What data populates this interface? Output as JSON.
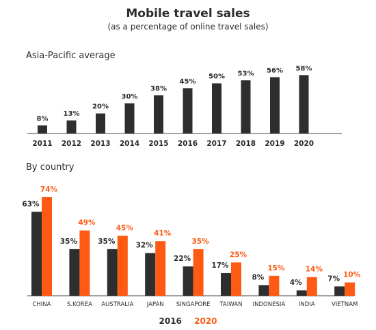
{
  "colors": {
    "dark": "#2e2e2e",
    "orange": "#ff5a14",
    "axis": "#444444",
    "text": "#2b2b2b"
  },
  "header": {
    "title": "Mobile travel sales",
    "subtitle": "(as a percentage of online travel sales)"
  },
  "chart_data": [
    {
      "type": "bar",
      "section_label": "Asia-Pacific average",
      "categories": [
        "2011",
        "2012",
        "2013",
        "2014",
        "2015",
        "2016",
        "2017",
        "2018",
        "2019",
        "2020"
      ],
      "values": [
        8,
        13,
        20,
        30,
        38,
        45,
        50,
        53,
        56,
        58
      ],
      "data_labels": [
        "8%",
        "13%",
        "20%",
        "30%",
        "38%",
        "45%",
        "50%",
        "53%",
        "56%",
        "58%"
      ],
      "ylim": [
        0,
        60
      ],
      "grid": false
    },
    {
      "type": "bar",
      "section_label": "By country",
      "categories": [
        "CHINA",
        "S.KOREA",
        "AUSTRALIA",
        "JAPAN",
        "SINGAPORE",
        "TAIWAN",
        "INDONESIA",
        "INDIA",
        "VIETNAM"
      ],
      "series": [
        {
          "name": "2016",
          "values": [
            63,
            35,
            35,
            32,
            22,
            17,
            8,
            4,
            7
          ],
          "data_labels": [
            "63%",
            "35%",
            "35%",
            "32%",
            "22%",
            "17%",
            "8%",
            "4%",
            "7%"
          ]
        },
        {
          "name": "2020",
          "values": [
            74,
            49,
            45,
            41,
            35,
            25,
            15,
            14,
            10
          ],
          "data_labels": [
            "74%",
            "49%",
            "45%",
            "41%",
            "35%",
            "25%",
            "15%",
            "14%",
            "10%"
          ]
        }
      ],
      "ylim": [
        0,
        75
      ],
      "legend": "bottom",
      "grid": false
    }
  ]
}
